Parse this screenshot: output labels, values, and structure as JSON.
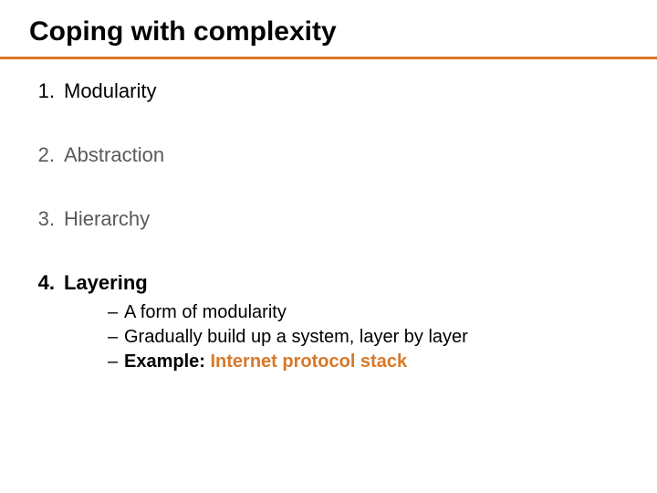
{
  "slide": {
    "title": "Coping with complexity",
    "accent_color": "#d97828",
    "title_fontsize": 30,
    "body_fontsize": 22,
    "sub_fontsize": 20,
    "text_color": "#000000",
    "dimmed_color": "#5a5a5a",
    "background_color": "#ffffff",
    "items": [
      {
        "num": "1.",
        "text": "Modularity",
        "dimmed": false,
        "bold": false
      },
      {
        "num": "2.",
        "text": "Abstraction",
        "dimmed": true,
        "bold": false
      },
      {
        "num": "3.",
        "text": "Hierarchy",
        "dimmed": true,
        "bold": false
      },
      {
        "num": "4.",
        "text": "Layering",
        "dimmed": false,
        "bold": true
      }
    ],
    "subitems": [
      {
        "dash": "–",
        "text": "A form of modularity",
        "bold_label": "",
        "bold_value": ""
      },
      {
        "dash": "–",
        "text": "Gradually build up a system, layer by layer",
        "bold_label": "",
        "bold_value": ""
      },
      {
        "dash": "–",
        "text": "",
        "bold_label": "Example: ",
        "bold_value": "Internet protocol stack"
      }
    ]
  }
}
